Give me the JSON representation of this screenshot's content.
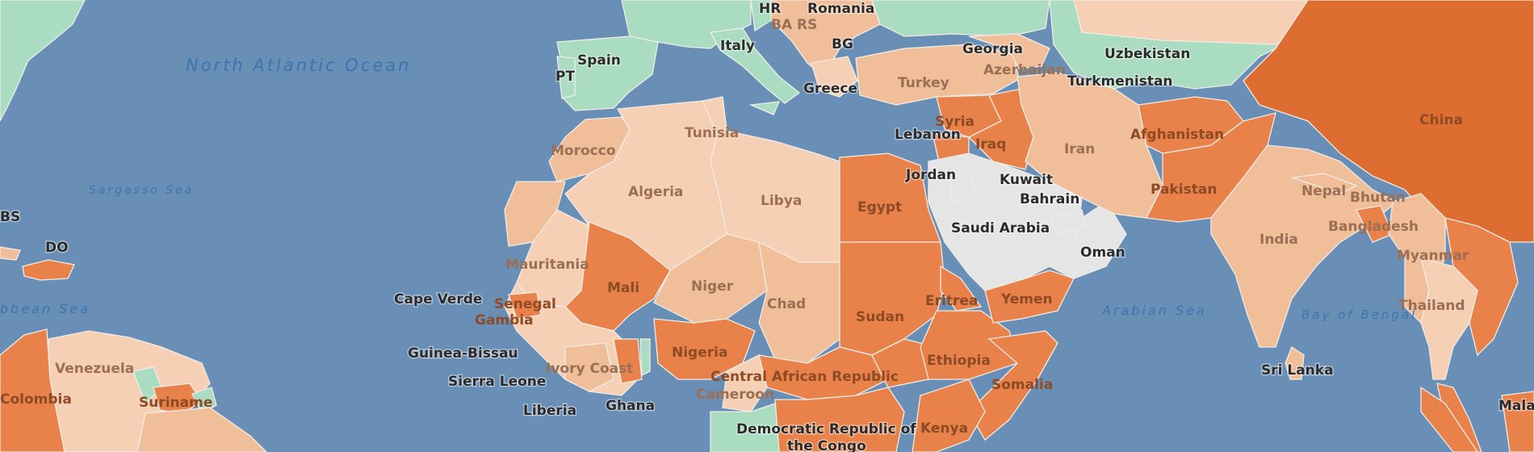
{
  "oceans": {
    "north_atlantic": "North Atlantic Ocean",
    "sargasso": "Sargasso Sea",
    "caribbean": "bbean Sea",
    "arabian": "Arabian Sea",
    "bengal": "Bay of Bengal"
  },
  "countries": {
    "spain": "Spain",
    "pt": "PT",
    "italy": "Italy",
    "hr": "HR",
    "bars": "BA RS",
    "romania": "Romania",
    "bg": "BG",
    "greece": "Greece",
    "turkey": "Turkey",
    "georgia": "Georgia",
    "azerbaijan": "Azerbaijan",
    "uzbekistan": "Uzbekistan",
    "turkmenistan": "Turkmenistan",
    "china": "China",
    "morocco": "Morocco",
    "tunisia": "Tunisia",
    "algeria": "Algeria",
    "libya": "Libya",
    "egypt": "Egypt",
    "lebanon": "Lebanon",
    "syria": "Syria",
    "iraq": "Iraq",
    "jordan": "Jordan",
    "kuwait": "Kuwait",
    "bahrain": "Bahrain",
    "iran": "Iran",
    "afghanistan": "Afghanistan",
    "pakistan": "Pakistan",
    "nepal": "Nepal",
    "bhutan": "Bhutan",
    "india": "India",
    "bangladesh": "Bangladesh",
    "myanmar": "Myanmar",
    "thailand": "Thailand",
    "sri_lanka": "Sri Lanka",
    "malaysia": "Malay",
    "saudi": "Saudi Arabia",
    "oman": "Oman",
    "yemen": "Yemen",
    "mauritania": "Mauritania",
    "mali": "Mali",
    "niger": "Niger",
    "chad": "Chad",
    "sudan": "Sudan",
    "eritrea": "Eritrea",
    "ethiopia": "Ethiopia",
    "somalia": "Somalia",
    "kenya": "Kenya",
    "cape_verde": "Cape Verde",
    "senegal": "Senegal",
    "gambia": "Gambia",
    "guinea_bissau": "Guinea-Bissau",
    "sierra_leone": "Sierra Leone",
    "liberia": "Liberia",
    "ivory_coast": "Ivory Coast",
    "ghana": "Ghana",
    "nigeria": "Nigeria",
    "car": "Central African Republic",
    "cameroon": "Cameroon",
    "drc": "Democratic Republic of",
    "drc2": "the Congo",
    "venezuela": "Venezuela",
    "colombia": "Colombia",
    "suriname": "Suriname",
    "bs": "BS",
    "do": "DO"
  },
  "colors": {
    "ocean": "#6a8fb6",
    "land_green": "#a9dcc0",
    "land_grey": "#e5e5e5",
    "pale": "#f6d0b5",
    "light": "#f0be98",
    "medium": "#eb9f6b",
    "strong": "#e8824a",
    "deep": "#de6d32"
  }
}
